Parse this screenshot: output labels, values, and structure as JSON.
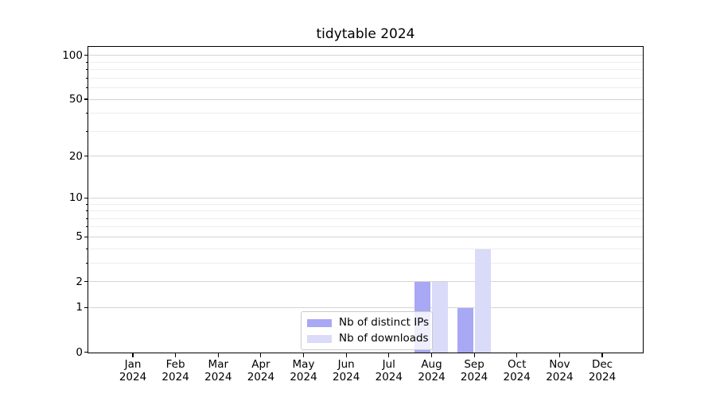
{
  "chart_data": {
    "type": "bar",
    "title": "tidytable 2024",
    "categories": [
      "Jan",
      "Feb",
      "Mar",
      "Apr",
      "May",
      "Jun",
      "Jul",
      "Aug",
      "Sep",
      "Oct",
      "Nov",
      "Dec"
    ],
    "category_year": "2024",
    "series": [
      {
        "name": "Nb of distinct IPs",
        "color": "#a8a8f4",
        "values": [
          0,
          0,
          0,
          0,
          0,
          0,
          0,
          2,
          1,
          0,
          0,
          0
        ]
      },
      {
        "name": "Nb of downloads",
        "color": "#dadaf9",
        "values": [
          0,
          0,
          0,
          0,
          0,
          0,
          0,
          2,
          4,
          0,
          0,
          0
        ]
      }
    ],
    "xlabel": "",
    "ylabel": "",
    "yscale": "log1p",
    "ylim": [
      0,
      115
    ],
    "yticks_major": [
      0,
      1,
      2,
      5,
      10,
      20,
      50,
      100
    ],
    "yticks_minor": [
      3,
      4,
      6,
      7,
      8,
      9,
      30,
      40,
      60,
      70,
      80,
      90
    ],
    "grid": true,
    "legend_position": "bottom-center"
  },
  "colors": {
    "grid_major": "#d4d4d4",
    "grid_minor": "#ededed",
    "frame": "#000000",
    "legend_border": "#cbcbcb",
    "background": "#ffffff"
  }
}
